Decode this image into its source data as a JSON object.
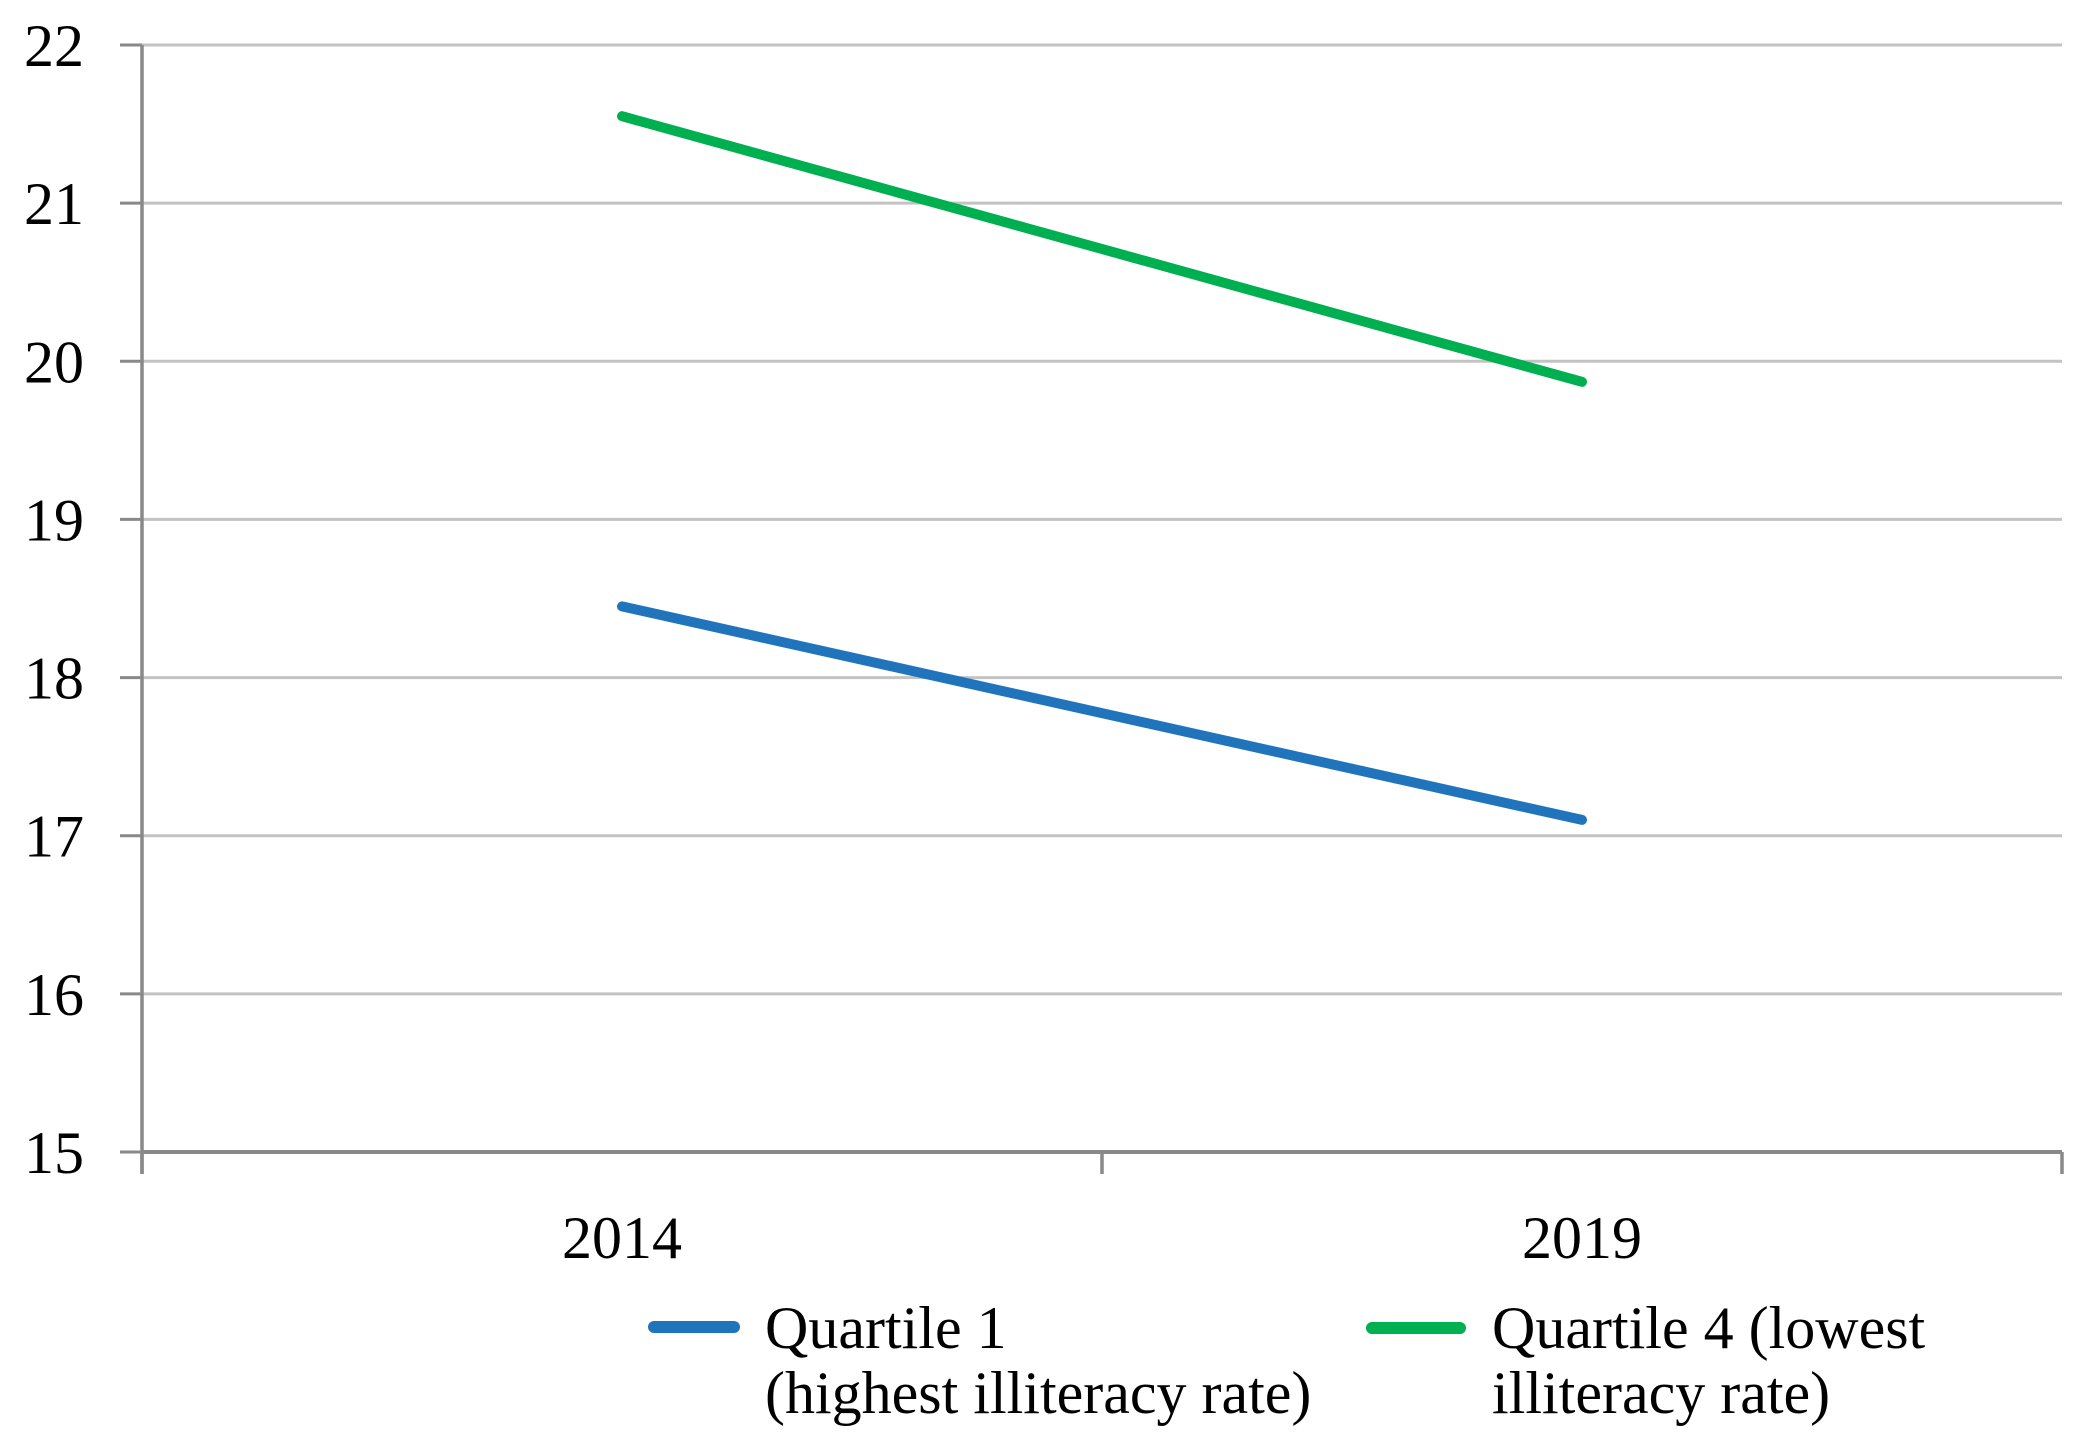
{
  "chart_data": {
    "type": "line",
    "title": "",
    "xlabel": "",
    "ylabel": "",
    "categories": [
      "2014",
      "2019"
    ],
    "series": [
      {
        "name": "Quartile 1 (highest illiteracy rate)",
        "legend_lines": [
          "Quartile 1",
          "(highest illiteracy rate)"
        ],
        "color": "#2074BC",
        "values": [
          18.45,
          17.1
        ]
      },
      {
        "name": "Quartile 4 (lowest illiteracy rate)",
        "legend_lines": [
          "Quartile 4 (lowest",
          "illiteracy rate)"
        ],
        "color": "#00AF50",
        "values": [
          21.55,
          19.87
        ]
      }
    ],
    "ylim": [
      15,
      22
    ],
    "yticks": [
      15,
      16,
      17,
      18,
      19,
      20,
      21,
      22
    ],
    "grid": true,
    "legend_position": "bottom",
    "colors": {
      "gridline": "#C3C3C3",
      "axis": "#898989",
      "text": "#000000",
      "background": "#FFFFFF"
    }
  }
}
